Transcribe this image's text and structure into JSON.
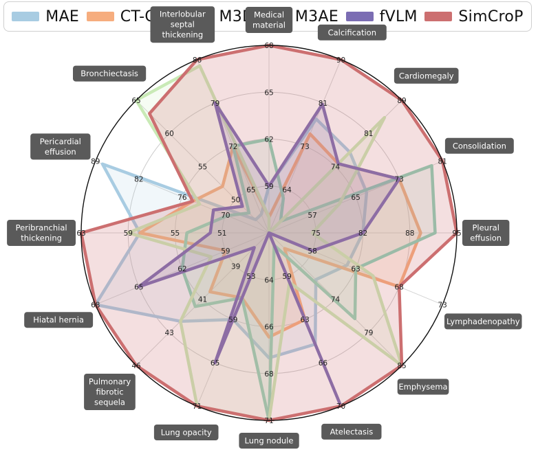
{
  "chart_data": {
    "type": "radar",
    "legend_position": "top",
    "categories": [
      "Medical material",
      "Calcification",
      "Cardiomegaly",
      "Consolidation",
      "Pleural effusion",
      "Lymphadenopathy",
      "Emphysema",
      "Atelectasis",
      "Lung nodule",
      "Lung opacity",
      "Pulmonary fibrotic sequela",
      "Hiatal hernia",
      "Peribranchial thickening",
      "Pericardial effusion",
      "Bronchiectasis",
      "Interlobular septal thickening"
    ],
    "category_labels": [
      [
        "Medical",
        "material"
      ],
      [
        "Calcification"
      ],
      [
        "Cardiomegaly"
      ],
      [
        "Consolidation"
      ],
      [
        "Pleural",
        "effusion"
      ],
      [
        "Lymphadenopathy"
      ],
      [
        "Emphysema"
      ],
      [
        "Atelectasis"
      ],
      [
        "Lung nodule"
      ],
      [
        "Lung opacity"
      ],
      [
        "Pulmonary",
        "fibrotic",
        "sequela"
      ],
      [
        "Hiatal hernia"
      ],
      [
        "Peribranchial",
        "thickening"
      ],
      [
        "Pericardial",
        "effusion"
      ],
      [
        "Bronchiectasis"
      ],
      [
        "Interlobular",
        "septal",
        "thickening"
      ]
    ],
    "axis_ticks": [
      [
        "59",
        "62",
        "65",
        "68"
      ],
      [
        "64",
        "73",
        "81",
        "90"
      ],
      [
        "74",
        "81",
        "89"
      ],
      [
        "57",
        "65",
        "73",
        "81"
      ],
      [
        "75",
        "82",
        "88",
        "95"
      ],
      [
        "58",
        "63",
        "68",
        "73"
      ],
      [
        "74",
        "79",
        "85"
      ],
      [
        "59",
        "63",
        "66",
        "70"
      ],
      [
        "64",
        "66",
        "68",
        "71"
      ],
      [
        "53",
        "59",
        "65",
        "71"
      ],
      [
        "39",
        "41",
        "43",
        "46"
      ],
      [
        "59",
        "62",
        "65",
        "68"
      ],
      [
        "51",
        "55",
        "59",
        "63"
      ],
      [
        "70",
        "76",
        "82",
        "89"
      ],
      [
        "50",
        "55",
        "60",
        "65"
      ],
      [
        "65",
        "72",
        "79",
        "86"
      ]
    ],
    "axis_ranges": [
      [
        56,
        68
      ],
      [
        55,
        90
      ],
      [
        66,
        89
      ],
      [
        49,
        81
      ],
      [
        69,
        95
      ],
      [
        53,
        73
      ],
      [
        68,
        85
      ],
      [
        56,
        70
      ],
      [
        62,
        71
      ],
      [
        47,
        71
      ],
      [
        37,
        46
      ],
      [
        56,
        68
      ],
      [
        47,
        63
      ],
      [
        64,
        89
      ],
      [
        45,
        65
      ],
      [
        58,
        86
      ]
    ],
    "series": [
      {
        "name": "MAE",
        "color": "#a8cce2",
        "values": [
          59,
          78,
          80,
          67,
          82,
          62,
          74,
          65,
          68,
          59,
          43,
          68,
          58,
          88,
          47,
          61
        ]
      },
      {
        "name": "CT-CLIP",
        "color": "#f6ad7e",
        "values": [
          57,
          75,
          78,
          73,
          90,
          68,
          70,
          63,
          67,
          56,
          41,
          59,
          58,
          75,
          52,
          72
        ]
      },
      {
        "name": "M3D",
        "color": "#8ed1b7",
        "values": [
          62,
          62,
          68,
          79,
          92,
          63,
          79,
          57,
          71,
          56,
          42,
          62,
          54,
          70,
          48,
          72
        ]
      },
      {
        "name": "M3AE",
        "color": "#c9eab6",
        "values": [
          57,
          55,
          86,
          62,
          75,
          65,
          85,
          60,
          71,
          71,
          43,
          60,
          59,
          74,
          65,
          85
        ]
      },
      {
        "name": "fVLM",
        "color": "#7b6db3",
        "values": [
          59,
          81,
          78,
          73,
          82,
          58,
          60,
          70,
          62,
          65,
          38,
          65,
          52,
          72,
          49,
          79
        ]
      },
      {
        "name": "SimCroP",
        "color": "#cc6f70",
        "values": [
          68,
          90,
          89,
          81,
          95,
          68,
          85,
          70,
          71,
          71,
          46,
          68,
          63,
          75,
          63,
          86
        ]
      }
    ]
  }
}
